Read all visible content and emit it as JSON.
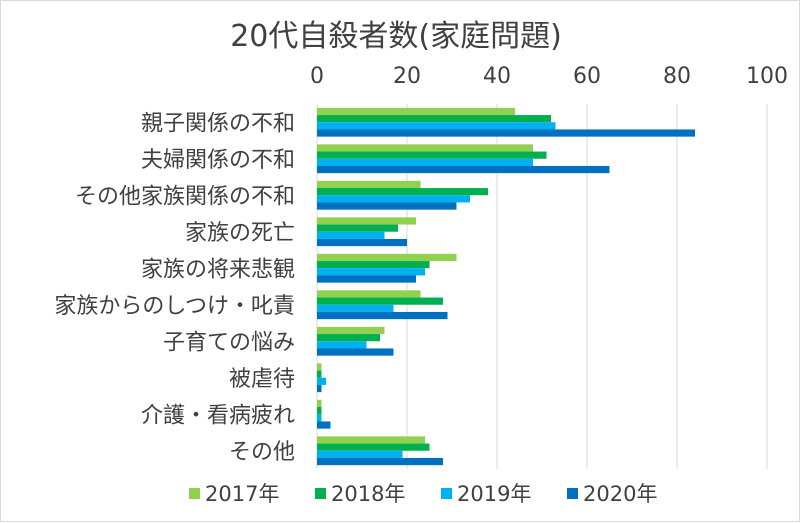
{
  "chart_data": {
    "type": "bar",
    "orientation": "horizontal",
    "title": "20代自殺者数(家庭問題)",
    "xlabel": "",
    "ylabel": "",
    "xlim": [
      0,
      100
    ],
    "x_ticks": [
      "0",
      "20",
      "40",
      "60",
      "80",
      "100"
    ],
    "x_axis_position": "top",
    "grid": true,
    "legend_position": "bottom",
    "categories": [
      "親子関係の不和",
      "夫婦関係の不和",
      "その他家族関係の不和",
      "家族の死亡",
      "家族の将来悲観",
      "家族からのしつけ・叱責",
      "子育ての悩み",
      "被虐待",
      "介護・看病疲れ",
      "その他"
    ],
    "series": [
      {
        "name": "2017年",
        "color": "#92d050",
        "values": [
          44,
          48,
          23,
          22,
          31,
          23,
          15,
          1,
          1,
          24
        ]
      },
      {
        "name": "2018年",
        "color": "#00b050",
        "values": [
          52,
          51,
          38,
          18,
          25,
          28,
          14,
          1,
          1,
          25
        ]
      },
      {
        "name": "2019年",
        "color": "#00b0f0",
        "values": [
          53,
          48,
          34,
          15,
          24,
          17,
          11,
          2,
          1,
          19
        ]
      },
      {
        "name": "2020年",
        "color": "#0070c0",
        "values": [
          84,
          65,
          31,
          20,
          22,
          29,
          17,
          1,
          3,
          28
        ]
      }
    ]
  }
}
